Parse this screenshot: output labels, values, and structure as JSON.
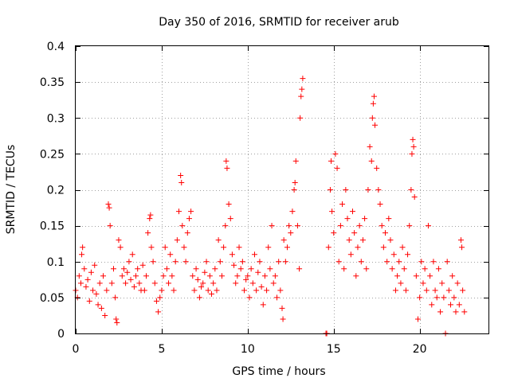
{
  "chart_data": {
    "type": "scatter",
    "title": "Day 350 of 2016, SRMTID for receiver arub",
    "xlabel": "GPS time / hours",
    "ylabel": "SRMTID / TECUs",
    "xlim": [
      0,
      24
    ],
    "ylim": [
      0,
      0.4
    ],
    "xticks": [
      0,
      5,
      10,
      15,
      20
    ],
    "xtick_labels": [
      "0",
      "5",
      "10",
      "15",
      "20"
    ],
    "yticks": [
      0,
      0.05,
      0.1,
      0.15,
      0.2,
      0.25,
      0.3,
      0.35,
      0.4
    ],
    "ytick_labels": [
      "0",
      "0.05",
      "0.1",
      "0.15",
      "0.2",
      "0.25",
      "0.3",
      "0.35",
      "0.4"
    ],
    "grid": true,
    "marker": "+",
    "color": "#ff0000",
    "gap": [
      13.3,
      14.5
    ],
    "series": [
      {
        "name": "SRMTID",
        "points": [
          [
            0.0,
            0.06
          ],
          [
            0.1,
            0.05
          ],
          [
            0.2,
            0.08
          ],
          [
            0.3,
            0.07
          ],
          [
            0.35,
            0.11
          ],
          [
            0.4,
            0.12
          ],
          [
            0.5,
            0.09
          ],
          [
            0.6,
            0.065
          ],
          [
            0.7,
            0.075
          ],
          [
            0.8,
            0.045
          ],
          [
            0.9,
            0.085
          ],
          [
            1.0,
            0.06
          ],
          [
            1.1,
            0.095
          ],
          [
            1.2,
            0.055
          ],
          [
            1.3,
            0.04
          ],
          [
            1.4,
            0.07
          ],
          [
            1.5,
            0.035
          ],
          [
            1.6,
            0.08
          ],
          [
            1.7,
            0.025
          ],
          [
            1.8,
            0.06
          ],
          [
            1.9,
            0.18
          ],
          [
            1.95,
            0.175
          ],
          [
            2.0,
            0.15
          ],
          [
            2.1,
            0.07
          ],
          [
            2.2,
            0.09
          ],
          [
            2.3,
            0.05
          ],
          [
            2.35,
            0.02
          ],
          [
            2.4,
            0.015
          ],
          [
            2.5,
            0.13
          ],
          [
            2.6,
            0.12
          ],
          [
            2.7,
            0.08
          ],
          [
            2.8,
            0.09
          ],
          [
            2.9,
            0.07
          ],
          [
            3.0,
            0.085
          ],
          [
            3.1,
            0.1
          ],
          [
            3.2,
            0.075
          ],
          [
            3.3,
            0.11
          ],
          [
            3.4,
            0.065
          ],
          [
            3.5,
            0.08
          ],
          [
            3.6,
            0.09
          ],
          [
            3.7,
            0.07
          ],
          [
            3.8,
            0.06
          ],
          [
            3.9,
            0.095
          ],
          [
            4.0,
            0.06
          ],
          [
            4.1,
            0.08
          ],
          [
            4.2,
            0.14
          ],
          [
            4.3,
            0.16
          ],
          [
            4.35,
            0.165
          ],
          [
            4.4,
            0.12
          ],
          [
            4.5,
            0.1
          ],
          [
            4.6,
            0.07
          ],
          [
            4.7,
            0.045
          ],
          [
            4.8,
            0.03
          ],
          [
            4.9,
            0.05
          ],
          [
            5.0,
            0.06
          ],
          [
            5.1,
            0.08
          ],
          [
            5.2,
            0.12
          ],
          [
            5.3,
            0.09
          ],
          [
            5.4,
            0.07
          ],
          [
            5.5,
            0.11
          ],
          [
            5.6,
            0.08
          ],
          [
            5.7,
            0.06
          ],
          [
            5.8,
            0.1
          ],
          [
            5.9,
            0.13
          ],
          [
            6.0,
            0.17
          ],
          [
            6.1,
            0.22
          ],
          [
            6.15,
            0.21
          ],
          [
            6.2,
            0.15
          ],
          [
            6.3,
            0.12
          ],
          [
            6.4,
            0.1
          ],
          [
            6.5,
            0.14
          ],
          [
            6.6,
            0.16
          ],
          [
            6.7,
            0.17
          ],
          [
            6.8,
            0.08
          ],
          [
            6.9,
            0.06
          ],
          [
            7.0,
            0.09
          ],
          [
            7.1,
            0.075
          ],
          [
            7.2,
            0.05
          ],
          [
            7.3,
            0.065
          ],
          [
            7.4,
            0.07
          ],
          [
            7.5,
            0.085
          ],
          [
            7.6,
            0.1
          ],
          [
            7.7,
            0.06
          ],
          [
            7.8,
            0.08
          ],
          [
            7.9,
            0.055
          ],
          [
            8.0,
            0.07
          ],
          [
            8.1,
            0.09
          ],
          [
            8.2,
            0.06
          ],
          [
            8.3,
            0.13
          ],
          [
            8.4,
            0.1
          ],
          [
            8.5,
            0.08
          ],
          [
            8.6,
            0.12
          ],
          [
            8.7,
            0.15
          ],
          [
            8.75,
            0.24
          ],
          [
            8.8,
            0.23
          ],
          [
            8.9,
            0.18
          ],
          [
            9.0,
            0.16
          ],
          [
            9.1,
            0.11
          ],
          [
            9.2,
            0.095
          ],
          [
            9.3,
            0.07
          ],
          [
            9.4,
            0.08
          ],
          [
            9.5,
            0.12
          ],
          [
            9.6,
            0.09
          ],
          [
            9.7,
            0.1
          ],
          [
            9.8,
            0.06
          ],
          [
            9.9,
            0.075
          ],
          [
            10.0,
            0.08
          ],
          [
            10.1,
            0.05
          ],
          [
            10.2,
            0.09
          ],
          [
            10.3,
            0.07
          ],
          [
            10.4,
            0.11
          ],
          [
            10.5,
            0.06
          ],
          [
            10.6,
            0.085
          ],
          [
            10.7,
            0.1
          ],
          [
            10.8,
            0.065
          ],
          [
            10.9,
            0.04
          ],
          [
            11.0,
            0.08
          ],
          [
            11.1,
            0.06
          ],
          [
            11.2,
            0.12
          ],
          [
            11.3,
            0.09
          ],
          [
            11.4,
            0.15
          ],
          [
            11.5,
            0.07
          ],
          [
            11.6,
            0.08
          ],
          [
            11.7,
            0.05
          ],
          [
            11.8,
            0.1
          ],
          [
            11.9,
            0.06
          ],
          [
            12.0,
            0.035
          ],
          [
            12.05,
            0.02
          ],
          [
            12.1,
            0.13
          ],
          [
            12.2,
            0.1
          ],
          [
            12.3,
            0.12
          ],
          [
            12.4,
            0.15
          ],
          [
            12.5,
            0.14
          ],
          [
            12.6,
            0.17
          ],
          [
            12.7,
            0.2
          ],
          [
            12.75,
            0.21
          ],
          [
            12.8,
            0.24
          ],
          [
            12.9,
            0.15
          ],
          [
            13.0,
            0.09
          ],
          [
            13.05,
            0.3
          ],
          [
            13.1,
            0.33
          ],
          [
            13.15,
            0.34
          ],
          [
            13.2,
            0.355
          ],
          [
            14.55,
            0.0
          ],
          [
            14.6,
            0.0
          ],
          [
            14.7,
            0.12
          ],
          [
            14.8,
            0.2
          ],
          [
            14.85,
            0.24
          ],
          [
            14.9,
            0.17
          ],
          [
            15.0,
            0.14
          ],
          [
            15.1,
            0.25
          ],
          [
            15.2,
            0.23
          ],
          [
            15.3,
            0.1
          ],
          [
            15.4,
            0.15
          ],
          [
            15.5,
            0.18
          ],
          [
            15.6,
            0.09
          ],
          [
            15.7,
            0.2
          ],
          [
            15.8,
            0.16
          ],
          [
            15.9,
            0.13
          ],
          [
            16.0,
            0.11
          ],
          [
            16.1,
            0.17
          ],
          [
            16.2,
            0.14
          ],
          [
            16.3,
            0.08
          ],
          [
            16.4,
            0.12
          ],
          [
            16.5,
            0.15
          ],
          [
            16.6,
            0.1
          ],
          [
            16.7,
            0.13
          ],
          [
            16.8,
            0.16
          ],
          [
            16.9,
            0.09
          ],
          [
            17.0,
            0.2
          ],
          [
            17.1,
            0.26
          ],
          [
            17.2,
            0.24
          ],
          [
            17.25,
            0.3
          ],
          [
            17.3,
            0.32
          ],
          [
            17.35,
            0.33
          ],
          [
            17.4,
            0.29
          ],
          [
            17.5,
            0.23
          ],
          [
            17.6,
            0.2
          ],
          [
            17.7,
            0.18
          ],
          [
            17.8,
            0.15
          ],
          [
            17.9,
            0.12
          ],
          [
            18.0,
            0.14
          ],
          [
            18.1,
            0.1
          ],
          [
            18.2,
            0.16
          ],
          [
            18.3,
            0.13
          ],
          [
            18.4,
            0.09
          ],
          [
            18.5,
            0.11
          ],
          [
            18.6,
            0.06
          ],
          [
            18.7,
            0.08
          ],
          [
            18.8,
            0.1
          ],
          [
            18.9,
            0.07
          ],
          [
            19.0,
            0.12
          ],
          [
            19.1,
            0.09
          ],
          [
            19.2,
            0.06
          ],
          [
            19.3,
            0.11
          ],
          [
            19.4,
            0.15
          ],
          [
            19.5,
            0.2
          ],
          [
            19.55,
            0.25
          ],
          [
            19.6,
            0.27
          ],
          [
            19.65,
            0.26
          ],
          [
            19.7,
            0.19
          ],
          [
            19.8,
            0.08
          ],
          [
            19.9,
            0.02
          ],
          [
            20.0,
            0.05
          ],
          [
            20.1,
            0.1
          ],
          [
            20.2,
            0.07
          ],
          [
            20.3,
            0.09
          ],
          [
            20.4,
            0.06
          ],
          [
            20.5,
            0.15
          ],
          [
            20.6,
            0.08
          ],
          [
            20.7,
            0.04
          ],
          [
            20.8,
            0.1
          ],
          [
            20.9,
            0.06
          ],
          [
            21.0,
            0.05
          ],
          [
            21.1,
            0.09
          ],
          [
            21.2,
            0.03
          ],
          [
            21.3,
            0.07
          ],
          [
            21.4,
            0.05
          ],
          [
            21.5,
            0.0
          ],
          [
            21.6,
            0.1
          ],
          [
            21.7,
            0.06
          ],
          [
            21.8,
            0.04
          ],
          [
            21.9,
            0.08
          ],
          [
            22.0,
            0.05
          ],
          [
            22.1,
            0.03
          ],
          [
            22.2,
            0.07
          ],
          [
            22.3,
            0.04
          ],
          [
            22.4,
            0.13
          ],
          [
            22.45,
            0.12
          ],
          [
            22.5,
            0.06
          ],
          [
            22.6,
            0.03
          ]
        ]
      }
    ]
  }
}
